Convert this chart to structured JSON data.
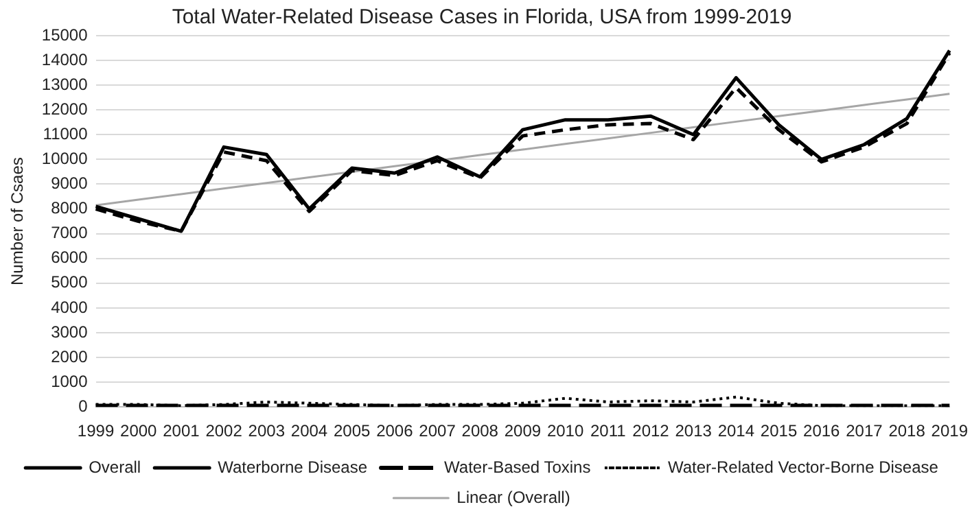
{
  "chart_data": {
    "type": "line",
    "title": "Total Water-Related Disease Cases in Florida, USA from 1999-2019",
    "ylabel": "Number of Csaes",
    "categories": [
      "1999",
      "2000",
      "2001",
      "2002",
      "2003",
      "2004",
      "2005",
      "2006",
      "2007",
      "2008",
      "2009",
      "2010",
      "2011",
      "2012",
      "2013",
      "2014",
      "2015",
      "2016",
      "2017",
      "2018",
      "2019"
    ],
    "series": [
      {
        "name": "Overall",
        "color": "#000000",
        "line_style": "solid",
        "values": [
          8100,
          7600,
          7100,
          10500,
          10200,
          8000,
          9650,
          9450,
          10100,
          9300,
          11200,
          11600,
          11600,
          11750,
          11000,
          13300,
          11400,
          10000,
          10600,
          11650,
          14400
        ]
      },
      {
        "name": "Waterborne Disease",
        "color": "#000000",
        "line_style": "dashed",
        "values": [
          8000,
          7500,
          7100,
          10300,
          9950,
          7900,
          9550,
          9350,
          9950,
          9250,
          10950,
          11200,
          11400,
          11450,
          10800,
          12900,
          11200,
          9900,
          10500,
          11450,
          14300
        ]
      },
      {
        "name": "Water-Based Toxins",
        "color": "#000000",
        "line_style": "longdash",
        "values": [
          50,
          50,
          50,
          50,
          50,
          50,
          50,
          50,
          50,
          50,
          50,
          50,
          50,
          50,
          50,
          50,
          50,
          50,
          50,
          50,
          50
        ]
      },
      {
        "name": "Water-Related Vector-Borne Disease",
        "color": "#000000",
        "line_style": "dotted",
        "values": [
          100,
          100,
          50,
          100,
          200,
          150,
          100,
          50,
          100,
          100,
          150,
          350,
          200,
          250,
          200,
          400,
          150,
          50,
          50,
          50,
          50
        ]
      },
      {
        "name": "Linear (Overall)",
        "color": "#a6a6a6",
        "line_style": "solid",
        "values": [
          8150,
          8375,
          8600,
          8825,
          9050,
          9275,
          9500,
          9725,
          9950,
          10175,
          10400,
          10625,
          10850,
          11075,
          11300,
          11525,
          11750,
          11975,
          12200,
          12425,
          12650
        ]
      }
    ],
    "ylim": [
      0,
      15000
    ],
    "yticks": [
      0,
      1000,
      2000,
      3000,
      4000,
      5000,
      6000,
      7000,
      8000,
      9000,
      10000,
      11000,
      12000,
      13000,
      14000,
      15000
    ],
    "grid": "y",
    "legend": "bottom",
    "marker": "none"
  }
}
